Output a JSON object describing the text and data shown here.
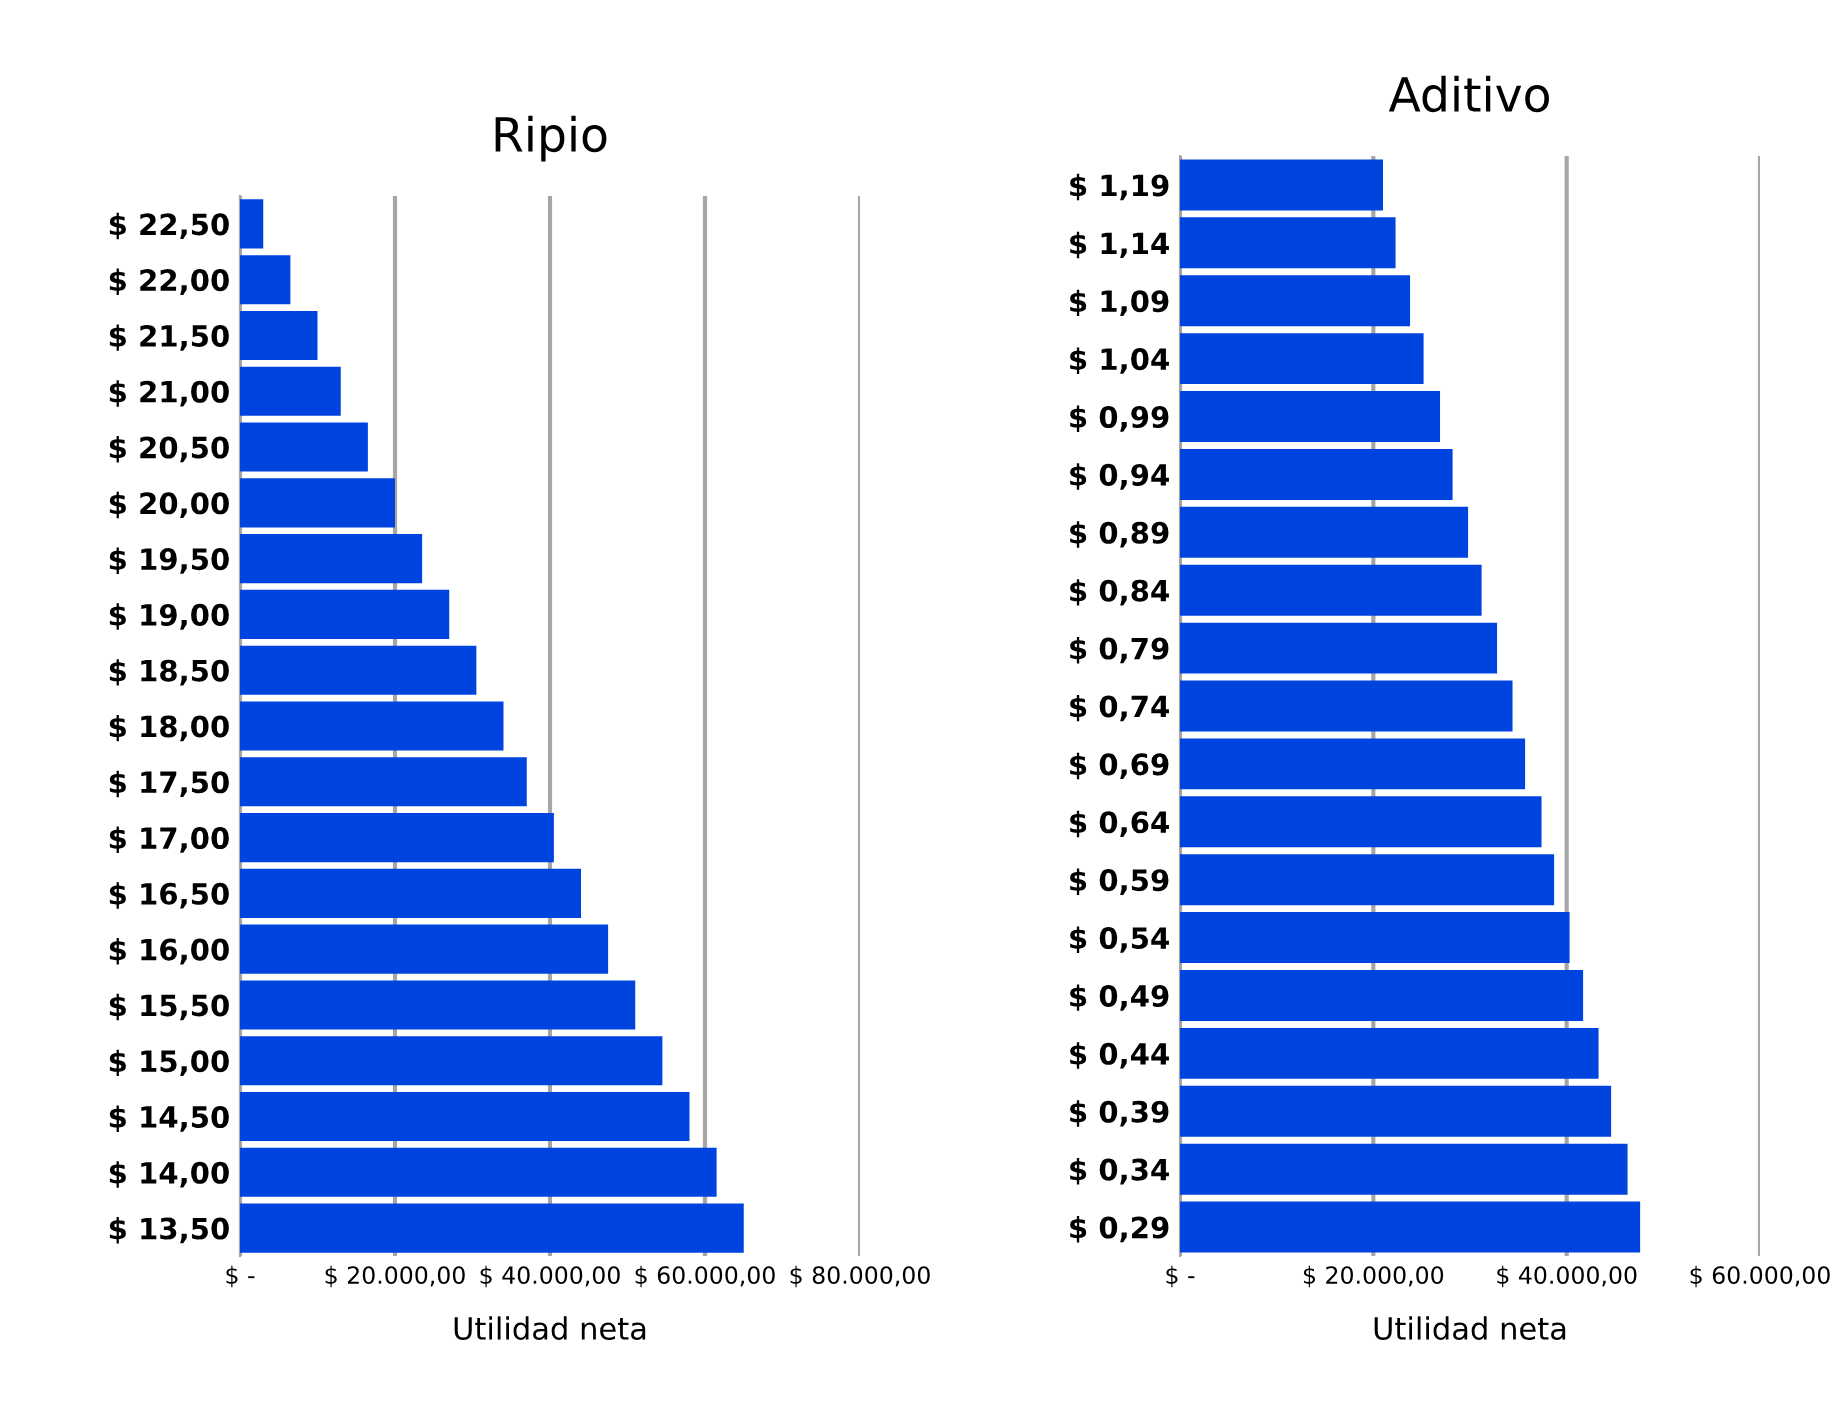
{
  "chart_data": [
    {
      "type": "bar",
      "orientation": "horizontal",
      "title": "Ripio",
      "xlabel": "Utilidad neta",
      "categories": [
        "$ 22,50",
        "$ 22,00",
        "$ 21,50",
        "$ 21,00",
        "$ 20,50",
        "$ 20,00",
        "$ 19,50",
        "$ 19,00",
        "$ 18,50",
        "$ 18,00",
        "$ 17,50",
        "$ 17,00",
        "$ 16,50",
        "$ 16,00",
        "$ 15,50",
        "$ 15,00",
        "$ 14,50",
        "$ 14,00",
        "$ 13,50"
      ],
      "values": [
        3000,
        6500,
        10000,
        13000,
        16500,
        20000,
        23500,
        27000,
        30500,
        34000,
        37000,
        40500,
        44000,
        47500,
        51000,
        54500,
        58000,
        61500,
        65000
      ],
      "color": "#0044e0",
      "xlim": [
        0,
        80000
      ],
      "xticks": [
        {
          "value": 0,
          "label": "$ -"
        },
        {
          "value": 20000,
          "label": "$ 20.000,00"
        },
        {
          "value": 40000,
          "label": "$ 40.000,00"
        },
        {
          "value": 60000,
          "label": "$ 60.000,00"
        },
        {
          "value": 80000,
          "label": "$ 80.000,00"
        }
      ],
      "grid": "x",
      "legend": false
    },
    {
      "type": "bar",
      "orientation": "horizontal",
      "title": "Aditivo",
      "xlabel": "Utilidad neta",
      "categories": [
        "$ 1,19",
        "$ 1,14",
        "$ 1,09",
        "$ 1,04",
        "$ 0,99",
        "$ 0,94",
        "$ 0,89",
        "$ 0,84",
        "$ 0,79",
        "$ 0,74",
        "$ 0,69",
        "$ 0,64",
        "$ 0,59",
        "$ 0,54",
        "$ 0,49",
        "$ 0,44",
        "$ 0,39",
        "$ 0,34",
        "$ 0,29"
      ],
      "values": [
        21000,
        22300,
        23800,
        25200,
        26900,
        28200,
        29800,
        31200,
        32800,
        34400,
        35700,
        37400,
        38700,
        40300,
        41700,
        43300,
        44600,
        46300,
        47600
      ],
      "color": "#0044e0",
      "xlim": [
        0,
        60000
      ],
      "xticks": [
        {
          "value": 0,
          "label": "$ -"
        },
        {
          "value": 20000,
          "label": "$ 20.000,00"
        },
        {
          "value": 40000,
          "label": "$ 40.000,00"
        },
        {
          "value": 60000,
          "label": "$ 60.000,00"
        }
      ],
      "grid": "x",
      "legend": false
    }
  ]
}
